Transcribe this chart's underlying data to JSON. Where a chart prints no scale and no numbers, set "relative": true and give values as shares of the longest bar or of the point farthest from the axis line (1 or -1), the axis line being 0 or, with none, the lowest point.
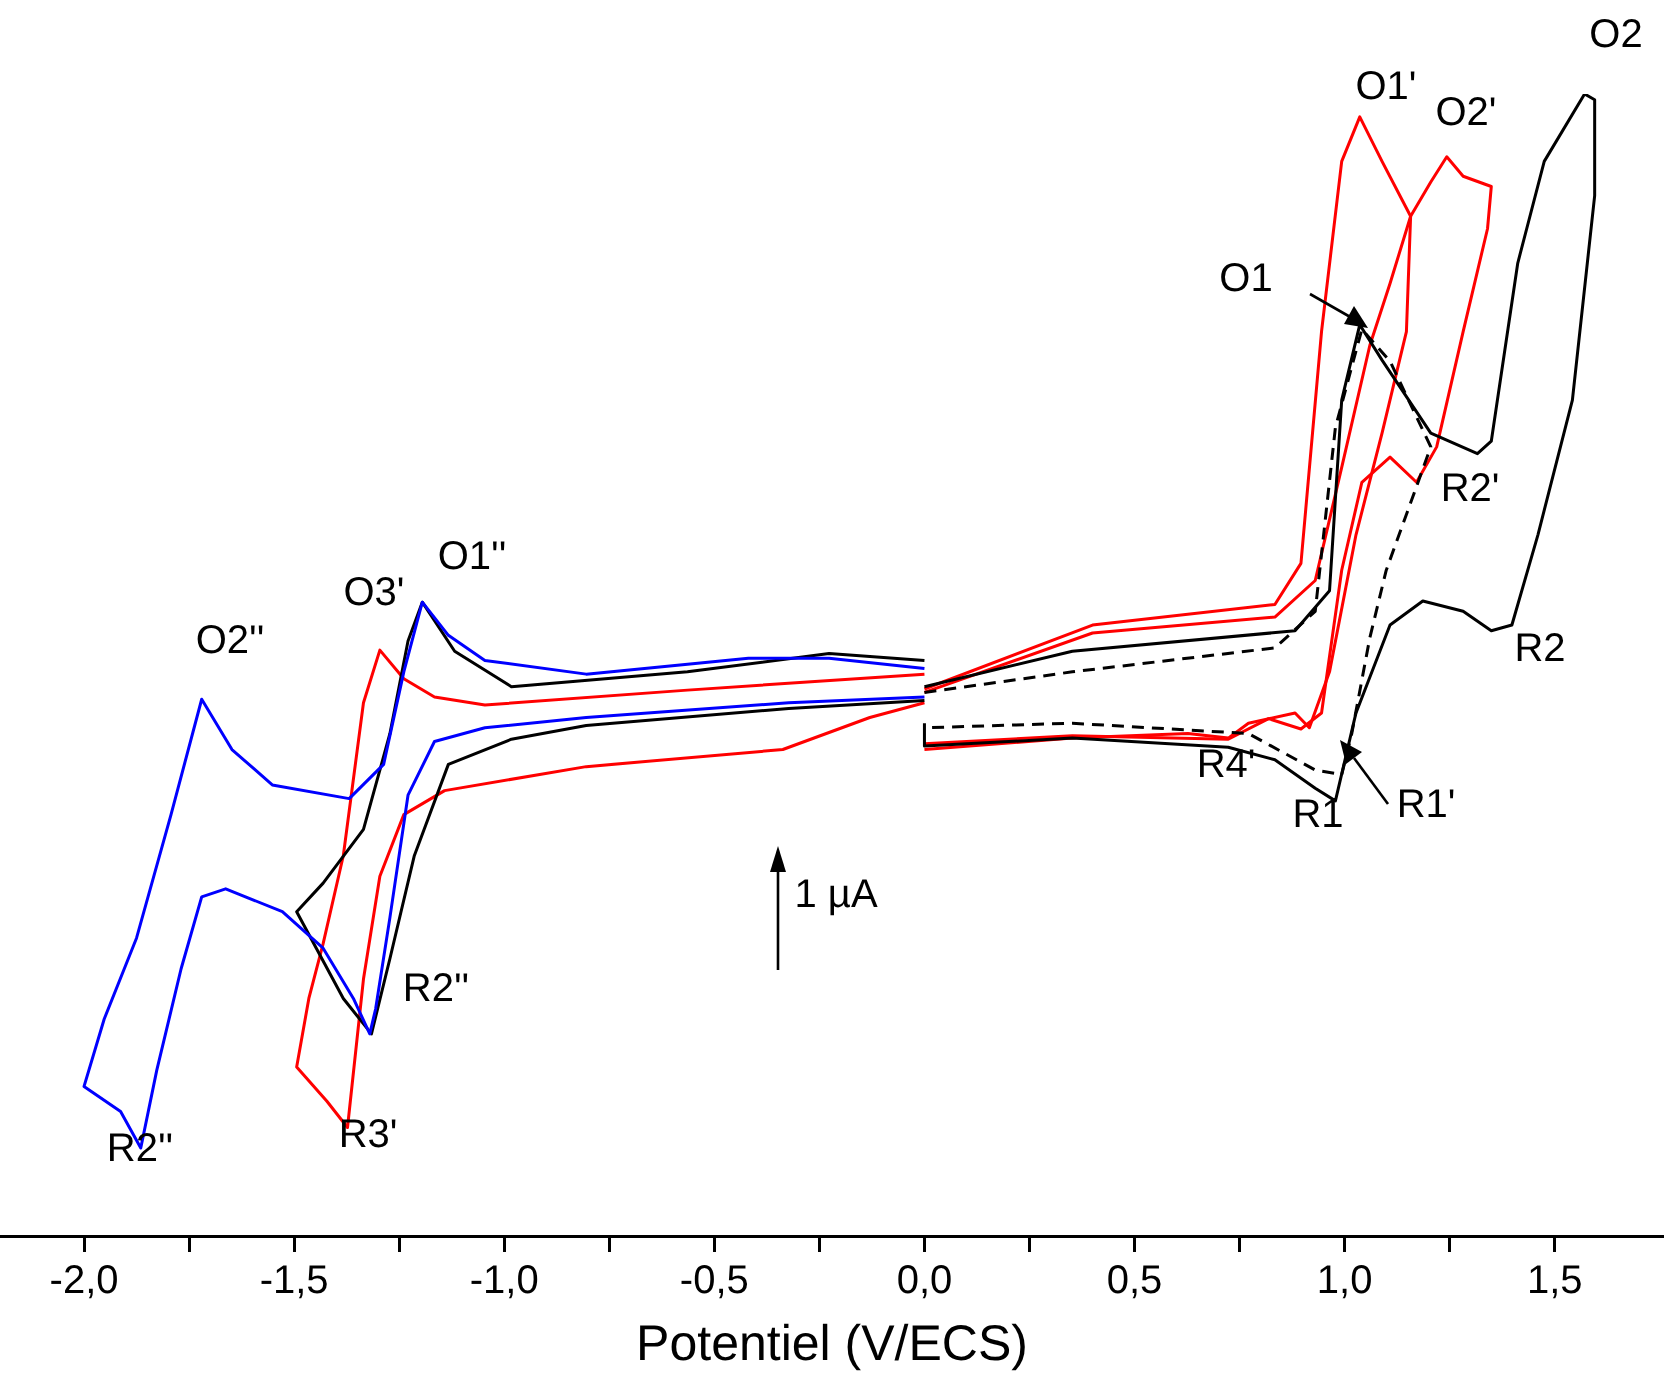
{
  "chart_data": {
    "type": "line",
    "xlabel": "Potentiel (V/ECS)",
    "relative": true,
    "legend": false,
    "grid": false,
    "marker": "none",
    "xlim": [
      -2.2,
      1.76
    ],
    "xticks": [
      {
        "value": -2,
        "label": "-2,0"
      },
      {
        "value": -1.75,
        "label": null
      },
      {
        "value": -1.5,
        "label": "-1,5"
      },
      {
        "value": -1.25,
        "label": null
      },
      {
        "value": -1,
        "label": "-1,0"
      },
      {
        "value": -0.75,
        "label": null
      },
      {
        "value": -0.5,
        "label": "-0,5"
      },
      {
        "value": -0.25,
        "label": null
      },
      {
        "value": 0,
        "label": "0,0"
      },
      {
        "value": 0.25,
        "label": null
      },
      {
        "value": 0.5,
        "label": "0,5"
      },
      {
        "value": 0.75,
        "label": null
      },
      {
        "value": 1,
        "label": "1,0"
      },
      {
        "value": 1.25,
        "label": null
      },
      {
        "value": 1.5,
        "label": "1,5"
      }
    ],
    "tick_labels": "x",
    "series": [
      {
        "color": "#0000ff",
        "line_style": "solid",
        "x": [
          0,
          -0.323,
          -0.805,
          -1.046,
          -1.166,
          -1.229,
          -1.272,
          -1.306,
          -1.32,
          -1.359,
          -1.431,
          -1.528,
          -1.663,
          -1.72,
          -1.769,
          -1.827,
          -1.865,
          -1.913,
          -2.0,
          -1.952,
          -1.875,
          -1.793,
          -1.72,
          -1.648,
          -1.552,
          -1.369,
          -1.287,
          -1.239,
          -1.195,
          -1.133,
          -1.046,
          -0.805,
          -0.419,
          -0.227,
          0
        ],
        "values": [
          0.472,
          0.467,
          0.454,
          0.445,
          0.433,
          0.386,
          0.279,
          0.199,
          0.177,
          0.208,
          0.252,
          0.284,
          0.304,
          0.297,
          0.234,
          0.145,
          0.077,
          0.109,
          0.131,
          0.19,
          0.261,
          0.369,
          0.47,
          0.426,
          0.395,
          0.383,
          0.413,
          0.494,
          0.555,
          0.526,
          0.504,
          0.492,
          0.506,
          0.506,
          0.497
        ]
      },
      {
        "color": "#000000",
        "line_style": "solid",
        "x": [
          0,
          -0.323,
          -0.805,
          -0.983,
          -1.133,
          -1.214,
          -1.272,
          -1.316,
          -1.383,
          -1.494,
          -1.431,
          -1.335,
          -1.272,
          -1.229,
          -1.195,
          -1.118,
          -0.983,
          -0.564,
          -0.227,
          0
        ],
        "values": [
          0.469,
          0.462,
          0.447,
          0.435,
          0.413,
          0.333,
          0.243,
          0.177,
          0.208,
          0.284,
          0.309,
          0.356,
          0.44,
          0.521,
          0.555,
          0.512,
          0.481,
          0.494,
          0.51,
          0.504
        ]
      },
      {
        "color": "#ff0000",
        "line_style": "solid",
        "x": [
          0,
          -0.13,
          -0.337,
          -0.805,
          -1.142,
          -1.239,
          -1.296,
          -1.335,
          -1.373,
          -1.422,
          -1.494,
          -1.465,
          -1.431,
          -1.383,
          -1.335,
          -1.296,
          -1.239,
          -1.166,
          -1.046,
          -0.564,
          0
        ],
        "values": [
          0.467,
          0.454,
          0.426,
          0.411,
          0.39,
          0.369,
          0.315,
          0.225,
          0.095,
          0.118,
          0.148,
          0.208,
          0.256,
          0.333,
          0.467,
          0.513,
          0.488,
          0.472,
          0.465,
          0.478,
          0.492
        ]
      },
      {
        "color": "#000000",
        "line_style": "solid",
        "x": [
          0,
          0.352,
          0.882,
          0.964,
          0.993,
          1.036,
          1.089,
          1.205,
          1.316,
          1.349,
          1.412,
          1.475,
          1.571,
          1.595,
          1.595,
          1.542,
          1.46,
          1.398,
          1.349,
          1.282,
          1.186,
          1.108,
          1.027,
          0.978,
          0.93,
          0.834,
          0.723,
          0.352,
          0,
          0
        ],
        "values": [
          0.481,
          0.512,
          0.53,
          0.565,
          0.732,
          0.798,
          0.767,
          0.703,
          0.685,
          0.696,
          0.852,
          0.941,
          1.0,
          0.995,
          0.911,
          0.732,
          0.614,
          0.535,
          0.53,
          0.547,
          0.556,
          0.535,
          0.458,
          0.381,
          0.392,
          0.417,
          0.428,
          0.436,
          0.429,
          0.449
        ]
      },
      {
        "color": "#000000",
        "line_style": "dashed",
        "x": [
          0,
          0.352,
          0.834,
          0.93,
          0.978,
          1.041,
          1.108,
          1.205,
          1.157,
          1.099,
          1.06,
          1.017,
          0.993,
          0.93,
          0.771,
          0.352,
          0
        ],
        "values": [
          0.476,
          0.494,
          0.515,
          0.547,
          0.708,
          0.794,
          0.766,
          0.691,
          0.642,
          0.583,
          0.524,
          0.44,
          0.404,
          0.408,
          0.44,
          0.449,
          0.445
        ]
      },
      {
        "color": "#ff0000",
        "line_style": "solid",
        "x": [
          0,
          0.4,
          0.834,
          0.896,
          0.945,
          0.993,
          1.036,
          1.089,
          1.157,
          1.147,
          1.089,
          1.027,
          0.964,
          0.916,
          0.882,
          0.771,
          0.723,
          0.627,
          0.352,
          0
        ],
        "values": [
          0.479,
          0.535,
          0.553,
          0.589,
          0.792,
          0.941,
          0.98,
          0.941,
          0.893,
          0.792,
          0.703,
          0.614,
          0.494,
          0.445,
          0.458,
          0.449,
          0.436,
          0.44,
          0.436,
          0.426
        ]
      },
      {
        "color": "#ff0000",
        "line_style": "solid",
        "x": [
          0,
          0.4,
          0.834,
          0.93,
          0.993,
          1.06,
          1.108,
          1.157,
          1.205,
          1.243,
          1.282,
          1.349,
          1.34,
          1.282,
          1.219,
          1.171,
          1.108,
          1.041,
          0.993,
          0.945,
          0.896,
          0.819,
          0.723,
          0.352,
          0
        ],
        "values": [
          0.476,
          0.528,
          0.542,
          0.574,
          0.673,
          0.78,
          0.834,
          0.893,
          0.923,
          0.945,
          0.928,
          0.919,
          0.882,
          0.792,
          0.691,
          0.66,
          0.682,
          0.66,
          0.583,
          0.458,
          0.444,
          0.453,
          0.435,
          0.438,
          0.431
        ]
      }
    ],
    "annotations": [
      "O2",
      "O1'",
      "O2'",
      "O1",
      "R2'",
      "R2",
      "R4'",
      "R1",
      "R1'",
      "O1''",
      "O3'",
      "O2''",
      "R2''",
      "R2''",
      "R3'",
      "1 µA"
    ]
  }
}
